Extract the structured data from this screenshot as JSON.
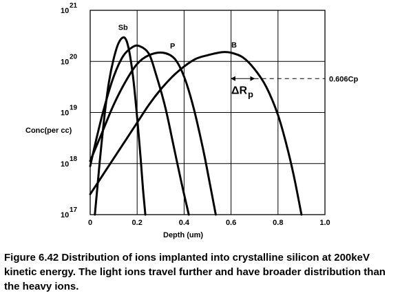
{
  "chart_data": {
    "type": "line",
    "xlabel": "Depth (um)",
    "ylabel": "Conc(per cc)",
    "xlim": [
      0,
      1.0
    ],
    "ylim_log10": [
      17,
      21
    ],
    "y_scale": "log",
    "grid": true,
    "x_ticks": [
      "0",
      "0.2",
      "0.4",
      "0.6",
      "0.8",
      "1.0"
    ],
    "y_ticks": [
      {
        "base": "10",
        "exp": "17"
      },
      {
        "base": "10",
        "exp": "18"
      },
      {
        "base": "10",
        "exp": "19"
      },
      {
        "base": "10",
        "exp": "20"
      },
      {
        "base": "10",
        "exp": "21"
      }
    ],
    "series": [
      {
        "name": "Sb",
        "points": [
          [
            0.02,
            17.0
          ],
          [
            0.04,
            18.0
          ],
          [
            0.06,
            18.9
          ],
          [
            0.08,
            19.6
          ],
          [
            0.1,
            20.05
          ],
          [
            0.12,
            20.35
          ],
          [
            0.14,
            20.47
          ],
          [
            0.155,
            20.4
          ],
          [
            0.17,
            20.1
          ],
          [
            0.185,
            19.6
          ],
          [
            0.2,
            18.9
          ],
          [
            0.215,
            18.1
          ],
          [
            0.225,
            17.5
          ],
          [
            0.235,
            17.0
          ]
        ]
      },
      {
        "name": "",
        "points": [
          [
            0.0,
            17.95
          ],
          [
            0.03,
            18.55
          ],
          [
            0.06,
            19.1
          ],
          [
            0.1,
            19.7
          ],
          [
            0.14,
            20.1
          ],
          [
            0.18,
            20.28
          ],
          [
            0.21,
            20.3
          ],
          [
            0.25,
            20.15
          ],
          [
            0.28,
            19.75
          ],
          [
            0.32,
            19.1
          ],
          [
            0.355,
            18.35
          ],
          [
            0.39,
            17.6
          ],
          [
            0.42,
            17.0
          ]
        ]
      },
      {
        "name": "P",
        "points": [
          [
            0.0,
            18.05
          ],
          [
            0.05,
            18.6
          ],
          [
            0.1,
            19.15
          ],
          [
            0.15,
            19.6
          ],
          [
            0.2,
            19.95
          ],
          [
            0.25,
            20.12
          ],
          [
            0.31,
            20.17
          ],
          [
            0.36,
            20.05
          ],
          [
            0.4,
            19.7
          ],
          [
            0.44,
            19.1
          ],
          [
            0.48,
            18.3
          ],
          [
            0.51,
            17.6
          ],
          [
            0.535,
            17.0
          ]
        ]
      },
      {
        "name": "B",
        "points": [
          [
            0.0,
            17.4
          ],
          [
            0.05,
            17.75
          ],
          [
            0.1,
            18.1
          ],
          [
            0.15,
            18.45
          ],
          [
            0.2,
            18.8
          ],
          [
            0.25,
            19.15
          ],
          [
            0.3,
            19.45
          ],
          [
            0.35,
            19.7
          ],
          [
            0.4,
            19.9
          ],
          [
            0.45,
            20.05
          ],
          [
            0.5,
            20.12
          ],
          [
            0.56,
            20.18
          ],
          [
            0.6,
            20.17
          ],
          [
            0.65,
            20.08
          ],
          [
            0.7,
            19.85
          ],
          [
            0.75,
            19.5
          ],
          [
            0.8,
            18.95
          ],
          [
            0.84,
            18.3
          ],
          [
            0.87,
            17.7
          ],
          [
            0.9,
            17.0
          ]
        ]
      }
    ],
    "annotations": {
      "delta_rp_label": "ΔR",
      "delta_rp_sub": "p",
      "ref_line_label": "0.606Cp",
      "ref_line_log10": 20.0,
      "delta_rp_x": [
        0.6,
        0.7
      ]
    }
  },
  "caption": "Figure 6.42 Distribution of  ions implanted into crystalline silicon at 200keV kinetic energy. The light ions travel further and have broader distribution than the heavy ions."
}
